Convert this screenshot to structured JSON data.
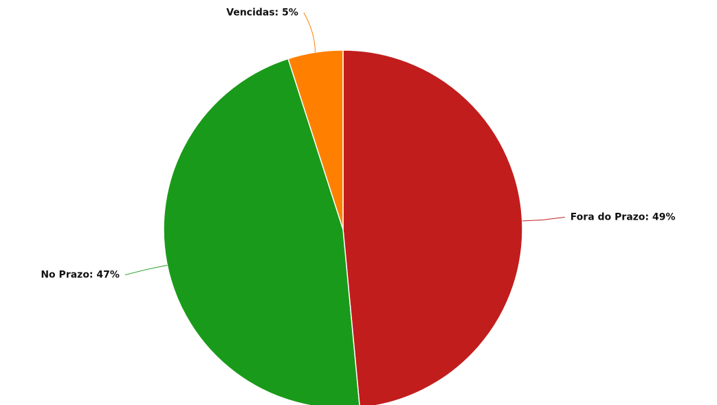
{
  "chart_data": {
    "type": "pie",
    "values": [
      49,
      47,
      5
    ],
    "value_labels": [
      "Fora do Prazo: 49%",
      "No Prazo: 47%",
      "Vencidas: 5%"
    ],
    "colors": [
      "#c11d1d",
      "#1a9a1a",
      "#ff8000"
    ]
  }
}
